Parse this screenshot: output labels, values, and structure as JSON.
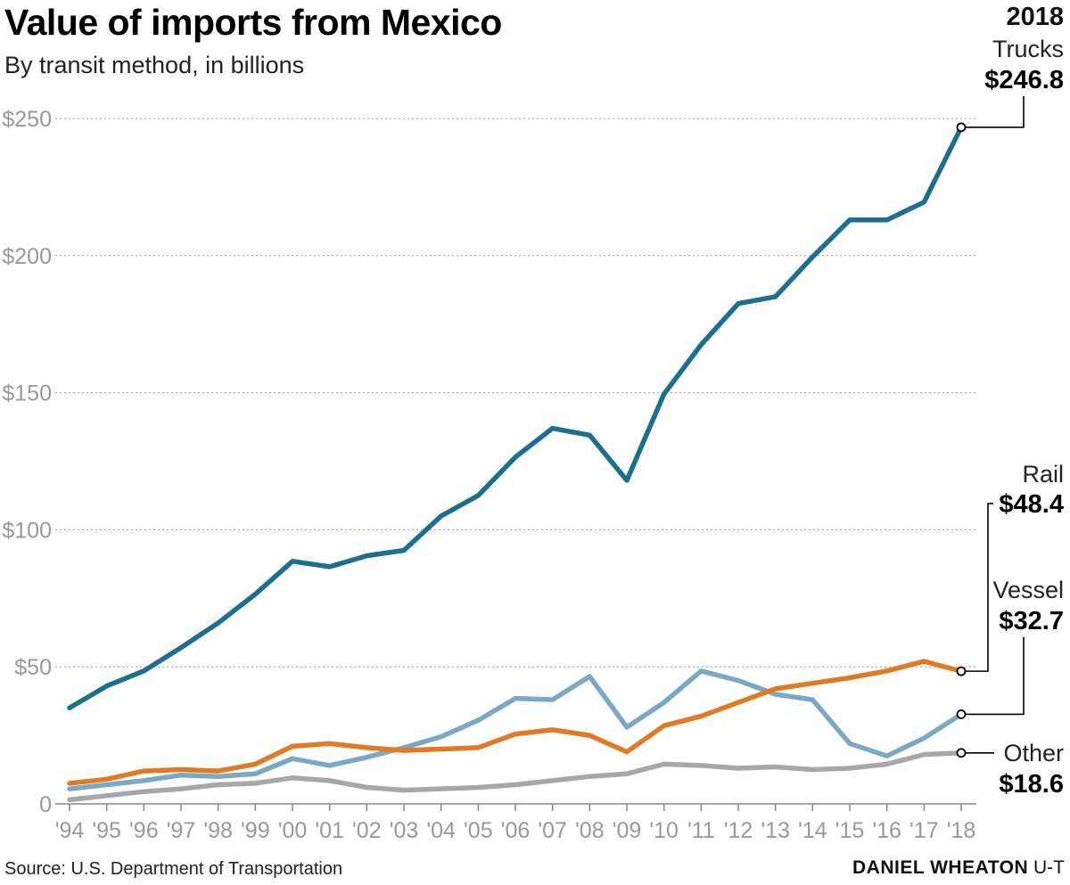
{
  "header": {
    "title": "Value of imports from Mexico",
    "subtitle": "By transit method, in billions"
  },
  "footer": {
    "source": "Source: U.S. Department of Transportation",
    "credit_name": "DANIEL WHEATON",
    "credit_org": "U-T"
  },
  "annotations": {
    "year": "2018",
    "trucks_name": "Trucks",
    "trucks_value": "$246.8",
    "rail_name": "Rail",
    "rail_value": "$48.4",
    "vessel_name": "Vessel",
    "vessel_value": "$32.7",
    "other_name": "Other",
    "other_value": "$18.6"
  },
  "chart_data": {
    "type": "line",
    "title": "Value of imports from Mexico",
    "subtitle": "By transit method, in billions",
    "categories": [
      "'94",
      "'95",
      "'96",
      "'97",
      "'98",
      "'99",
      "'00",
      "'01",
      "'02",
      "'03",
      "'04",
      "'05",
      "'06",
      "'07",
      "'08",
      "'09",
      "'10",
      "'11",
      "'12",
      "'13",
      "'14",
      "'15",
      "'16",
      "'17",
      "'18"
    ],
    "y_ticks": [
      0,
      50,
      100,
      150,
      200,
      250
    ],
    "y_tick_labels": [
      "0",
      "$50",
      "$100",
      "$150",
      "$200",
      "$250"
    ],
    "ylim": [
      0,
      250
    ],
    "grid": "horizontal dotted",
    "series": [
      {
        "name": "Trucks",
        "color": "#1e6e8e",
        "values": [
          35,
          43,
          48.5,
          57,
          66,
          76.5,
          88.5,
          86.5,
          90.5,
          92.5,
          105,
          112.5,
          126.5,
          137,
          134.5,
          118,
          149.5,
          167.5,
          182.5,
          185,
          199.5,
          213,
          213,
          219.5,
          246.8
        ]
      },
      {
        "name": "Rail",
        "color": "#e07b25",
        "values": [
          7.5,
          9,
          12,
          12.5,
          12,
          14.5,
          21,
          22,
          20.5,
          19.5,
          20,
          20.5,
          25.5,
          27,
          25,
          19,
          28.5,
          32,
          37,
          42,
          44,
          46,
          48.5,
          52,
          48.4
        ]
      },
      {
        "name": "Vessel",
        "color": "#7ba9c4",
        "values": [
          5.5,
          7,
          8.5,
          10.5,
          10,
          11,
          16.5,
          14,
          17,
          20.5,
          24.5,
          30.5,
          38.5,
          38,
          46.5,
          28,
          37,
          48.5,
          45,
          40,
          38,
          22,
          17.5,
          24,
          32.7
        ]
      },
      {
        "name": "Other",
        "color": "#a7a7ab",
        "values": [
          1.5,
          3,
          4.5,
          5.5,
          7,
          7.5,
          9.5,
          8.5,
          6,
          5,
          5.5,
          6,
          7,
          8.5,
          10,
          11,
          14.5,
          14,
          13,
          13.5,
          12.5,
          13,
          14.5,
          18,
          18.6
        ]
      }
    ]
  }
}
